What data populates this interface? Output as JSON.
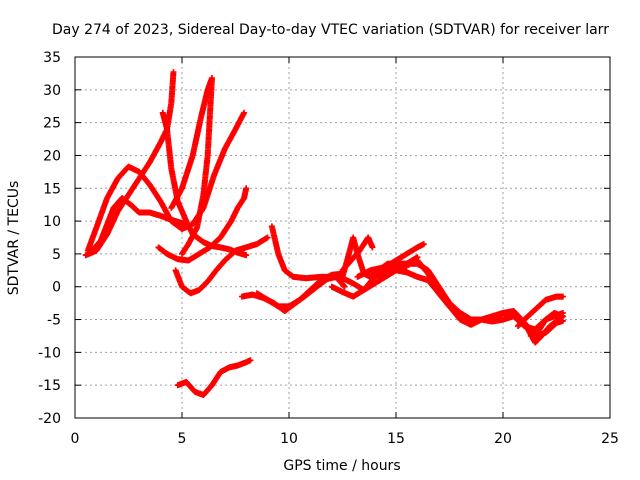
{
  "chart_data": {
    "type": "scatter",
    "title": "Day 274 of 2023, Sidereal Day-to-day VTEC variation (SDTVAR) for receiver larr",
    "xlabel": "GPS time / hours",
    "ylabel": "SDTVAR / TECUs",
    "xlim": [
      0,
      25
    ],
    "ylim": [
      -20,
      35
    ],
    "xticks": [
      0,
      5,
      10,
      15,
      20,
      25
    ],
    "yticks": [
      -20,
      -15,
      -10,
      -5,
      0,
      5,
      10,
      15,
      20,
      25,
      30,
      35
    ],
    "grid": true,
    "legend": "none",
    "marker": "+",
    "color": "#ff0000",
    "series": [
      {
        "values": [
          [
            0.6,
            5.5
          ],
          [
            1.0,
            9
          ],
          [
            1.5,
            13.5
          ],
          [
            2.0,
            16.5
          ],
          [
            2.5,
            18.3
          ],
          [
            3.0,
            17.5
          ],
          [
            3.5,
            15.5
          ],
          [
            4.0,
            13
          ],
          [
            4.5,
            10
          ],
          [
            5.0,
            8.8
          ],
          [
            5.5,
            9.5
          ],
          [
            6.0,
            12
          ],
          [
            6.5,
            17
          ],
          [
            7.0,
            21
          ],
          [
            7.5,
            24
          ],
          [
            7.9,
            26.5
          ]
        ]
      },
      {
        "values": [
          [
            0.8,
            5.5
          ],
          [
            1.2,
            7
          ],
          [
            1.5,
            9.5
          ],
          [
            1.8,
            12
          ],
          [
            2.2,
            13.5
          ],
          [
            2.6,
            12.5
          ],
          [
            3.0,
            11.3
          ],
          [
            3.5,
            11.3
          ],
          [
            4.0,
            10.8
          ],
          [
            4.5,
            10.2
          ],
          [
            5.0,
            9.7
          ],
          [
            5.2,
            9.3
          ]
        ]
      },
      {
        "values": [
          [
            0.5,
            4.8
          ],
          [
            1.0,
            5.5
          ],
          [
            1.5,
            8
          ],
          [
            2.0,
            11.5
          ],
          [
            2.5,
            14
          ],
          [
            3.0,
            16.5
          ],
          [
            3.5,
            19
          ],
          [
            4.0,
            22
          ],
          [
            4.3,
            24
          ],
          [
            4.5,
            28
          ],
          [
            4.6,
            32.7
          ]
        ]
      },
      {
        "values": [
          [
            4.1,
            26.5
          ],
          [
            4.3,
            24
          ],
          [
            4.5,
            18
          ],
          [
            4.8,
            13
          ],
          [
            5.2,
            10
          ],
          [
            5.5,
            8
          ],
          [
            6.0,
            6.8
          ],
          [
            6.4,
            6.2
          ],
          [
            6.8,
            6
          ],
          [
            7.2,
            5.7
          ],
          [
            7.6,
            5.2
          ],
          [
            8.0,
            4.8
          ]
        ]
      },
      {
        "values": [
          [
            3.9,
            6
          ],
          [
            4.3,
            5
          ],
          [
            4.8,
            4.2
          ],
          [
            5.3,
            4
          ],
          [
            5.8,
            5
          ],
          [
            6.3,
            6
          ],
          [
            6.8,
            7.5
          ],
          [
            7.3,
            10
          ],
          [
            7.6,
            12
          ],
          [
            7.9,
            13.5
          ],
          [
            8.0,
            15
          ]
        ]
      },
      {
        "values": [
          [
            4.7,
            2.5
          ],
          [
            5.0,
            0
          ],
          [
            5.4,
            -1
          ],
          [
            5.8,
            -0.5
          ],
          [
            6.2,
            0.8
          ],
          [
            6.6,
            2.5
          ],
          [
            7.0,
            4
          ],
          [
            7.5,
            5.5
          ],
          [
            8.0,
            6
          ],
          [
            8.5,
            6.5
          ],
          [
            9.0,
            7.5
          ]
        ]
      },
      {
        "values": [
          [
            4.5,
            12
          ],
          [
            5.0,
            15
          ],
          [
            5.5,
            20
          ],
          [
            5.9,
            26
          ],
          [
            6.2,
            30
          ],
          [
            6.4,
            31.8
          ],
          [
            6.2,
            20
          ],
          [
            6.0,
            14
          ],
          [
            5.7,
            9
          ],
          [
            5.3,
            6.5
          ],
          [
            5.0,
            5
          ]
        ]
      },
      {
        "values": [
          [
            4.8,
            -15
          ],
          [
            5.2,
            -14.5
          ],
          [
            5.6,
            -16
          ],
          [
            6.0,
            -16.5
          ],
          [
            6.4,
            -15
          ],
          [
            6.8,
            -13
          ],
          [
            7.2,
            -12.3
          ],
          [
            7.6,
            -12
          ],
          [
            8.0,
            -11.5
          ],
          [
            8.2,
            -11.2
          ]
        ]
      },
      {
        "values": [
          [
            7.8,
            -1.5
          ],
          [
            8.3,
            -1.2
          ],
          [
            8.8,
            -1.7
          ],
          [
            9.3,
            -2.5
          ],
          [
            9.8,
            -3.7
          ],
          [
            10.3,
            -2.5
          ],
          [
            10.8,
            -1.3
          ],
          [
            11.3,
            0
          ],
          [
            11.8,
            1.2
          ],
          [
            12.2,
            1.5
          ],
          [
            12.6,
            0
          ]
        ]
      },
      {
        "values": [
          [
            8.5,
            -1
          ],
          [
            9.0,
            -2
          ],
          [
            9.5,
            -3
          ],
          [
            10.0,
            -3
          ],
          [
            10.5,
            -2
          ],
          [
            11.0,
            -0.5
          ],
          [
            11.5,
            1
          ],
          [
            12.0,
            1.8
          ],
          [
            12.5,
            2
          ]
        ]
      },
      {
        "values": [
          [
            9.2,
            9.2
          ],
          [
            9.5,
            5
          ],
          [
            9.8,
            2.5
          ],
          [
            10.2,
            1.5
          ],
          [
            10.8,
            1.3
          ],
          [
            11.5,
            1.5
          ],
          [
            12.0,
            1.5
          ],
          [
            12.5,
            1.3
          ],
          [
            13.0,
            0.5
          ],
          [
            13.5,
            -0.5
          ],
          [
            14.0,
            0.5
          ],
          [
            14.5,
            1.5
          ],
          [
            15.0,
            2.5
          ],
          [
            15.5,
            3.5
          ],
          [
            16.0,
            4.5
          ]
        ]
      },
      {
        "values": [
          [
            12.0,
            0
          ],
          [
            12.5,
            -0.8
          ],
          [
            13.0,
            -1.5
          ],
          [
            13.5,
            -0.5
          ],
          [
            14.0,
            1.5
          ],
          [
            14.5,
            3
          ],
          [
            15.0,
            4
          ],
          [
            15.5,
            5
          ],
          [
            16.0,
            6
          ],
          [
            16.3,
            6.5
          ]
        ]
      },
      {
        "values": [
          [
            12.5,
            1.5
          ],
          [
            12.8,
            5
          ],
          [
            13.0,
            7.5
          ],
          [
            13.2,
            5
          ],
          [
            13.5,
            2
          ],
          [
            13.8,
            1.5
          ],
          [
            14.2,
            2.5
          ],
          [
            14.6,
            3.5
          ],
          [
            15.0,
            3.5
          ],
          [
            15.5,
            3
          ]
        ]
      },
      {
        "values": [
          [
            12.5,
            2.5
          ],
          [
            12.9,
            4
          ],
          [
            13.3,
            5.5
          ],
          [
            13.7,
            7.5
          ],
          [
            13.9,
            6
          ]
        ]
      },
      {
        "values": [
          [
            13.2,
            1.5
          ],
          [
            13.8,
            2.5
          ],
          [
            14.5,
            3
          ],
          [
            15.2,
            3.5
          ],
          [
            16.0,
            3.5
          ],
          [
            16.5,
            2.5
          ],
          [
            17.0,
            0
          ],
          [
            17.5,
            -2.5
          ],
          [
            18.0,
            -4
          ],
          [
            18.5,
            -5
          ],
          [
            19.0,
            -5
          ],
          [
            19.5,
            -5.3
          ],
          [
            20.0,
            -5
          ],
          [
            20.5,
            -4.5
          ],
          [
            21.0,
            -5.5
          ],
          [
            21.5,
            -7.5
          ],
          [
            22.0,
            -7
          ],
          [
            22.5,
            -5.5
          ],
          [
            22.8,
            -5.2
          ]
        ]
      },
      {
        "values": [
          [
            14.0,
            1.5
          ],
          [
            15.0,
            3
          ],
          [
            16.0,
            4
          ],
          [
            16.5,
            2
          ],
          [
            17.0,
            -1
          ],
          [
            17.5,
            -3
          ],
          [
            18.0,
            -5
          ],
          [
            18.5,
            -5.8
          ],
          [
            19.0,
            -5
          ],
          [
            19.5,
            -4.5
          ],
          [
            20.0,
            -4
          ],
          [
            20.5,
            -3.7
          ],
          [
            21.0,
            -5.5
          ],
          [
            21.5,
            -8.5
          ],
          [
            21.8,
            -7.5
          ],
          [
            22.2,
            -6
          ],
          [
            22.8,
            -4.5
          ]
        ]
      },
      {
        "values": [
          [
            15.0,
            2.5
          ],
          [
            15.5,
            2.2
          ],
          [
            16.0,
            1.5
          ],
          [
            16.5,
            1
          ],
          [
            17.0,
            -1
          ],
          [
            17.5,
            -3
          ],
          [
            18.0,
            -4
          ],
          [
            18.5,
            -5
          ],
          [
            19.0,
            -5
          ],
          [
            19.5,
            -5
          ],
          [
            20.0,
            -4
          ],
          [
            20.5,
            -4.5
          ],
          [
            21.0,
            -6
          ],
          [
            21.5,
            -6.5
          ],
          [
            22.0,
            -5
          ],
          [
            22.8,
            -4
          ]
        ]
      },
      {
        "values": [
          [
            20.7,
            -6
          ],
          [
            21.0,
            -5
          ],
          [
            21.5,
            -3.5
          ],
          [
            22.0,
            -2
          ],
          [
            22.5,
            -1.5
          ],
          [
            22.8,
            -1.5
          ]
        ]
      },
      {
        "values": [
          [
            21.3,
            -7.5
          ],
          [
            21.7,
            -6.5
          ],
          [
            22.0,
            -5
          ],
          [
            22.4,
            -4
          ],
          [
            22.8,
            -4.5
          ]
        ]
      }
    ]
  }
}
